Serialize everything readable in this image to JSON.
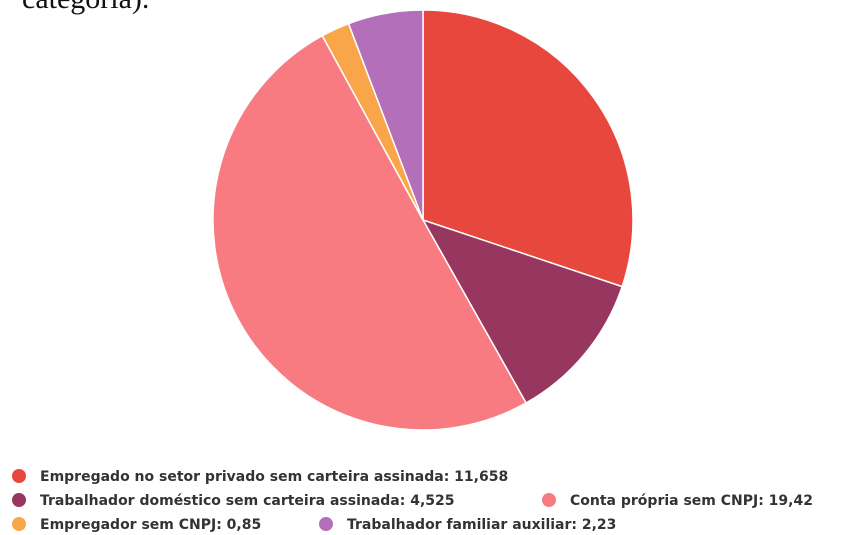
{
  "chart_data": {
    "type": "pie",
    "title": "categoria).",
    "categories": [
      "Empregado no setor privado sem carteira assinada: 11,658",
      "Trabalhador doméstico sem carteira assinada: 4,525",
      "Conta própria sem CNPJ: 19,42",
      "Empregador sem CNPJ: 0,85",
      "Trabalhador familiar auxiliar: 2,23"
    ],
    "values": [
      11.658,
      4.525,
      19.42,
      0.85,
      2.23
    ],
    "colors": [
      "#e8473e",
      "#97365f",
      "#f77b80",
      "#f9a64a",
      "#b36fb9"
    ]
  }
}
